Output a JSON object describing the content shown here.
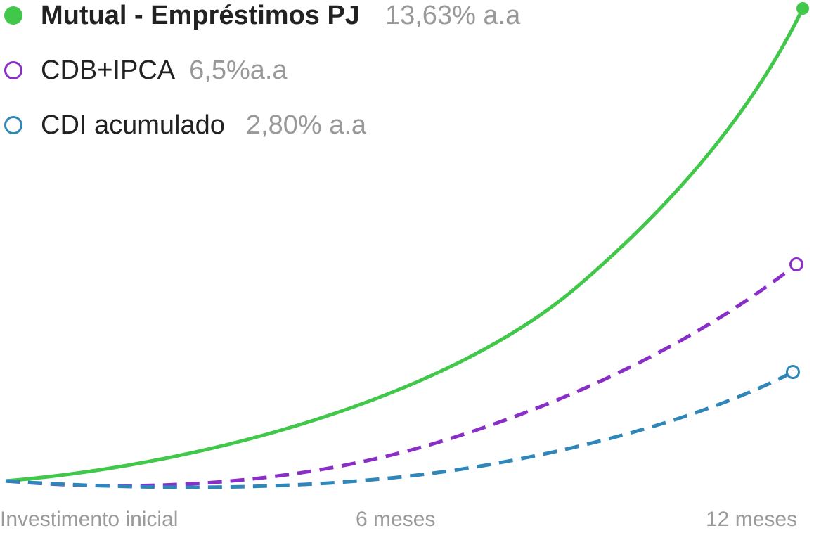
{
  "chart_data": {
    "type": "line",
    "title": "",
    "xlabel": "",
    "ylabel": "",
    "x_categories": [
      "Investimento inicial",
      "6 meses",
      "12 meses"
    ],
    "grid": false,
    "legend_position": "top-left",
    "series": [
      {
        "name": "Mutual - Empréstimos PJ",
        "rate_label": "13,63% a.a",
        "rate": 13.63,
        "color": "#41c84a",
        "line_style": "solid",
        "marker": "filled"
      },
      {
        "name": "CDB+IPCA",
        "rate_label": "6,5%a.a",
        "rate": 6.5,
        "color": "#8a2ec8",
        "line_style": "dashed",
        "marker": "hollow"
      },
      {
        "name": "CDI acumulado",
        "rate_label": "2,80% a.a",
        "rate": 2.8,
        "color": "#2e86b9",
        "line_style": "dashed",
        "marker": "hollow"
      }
    ]
  }
}
